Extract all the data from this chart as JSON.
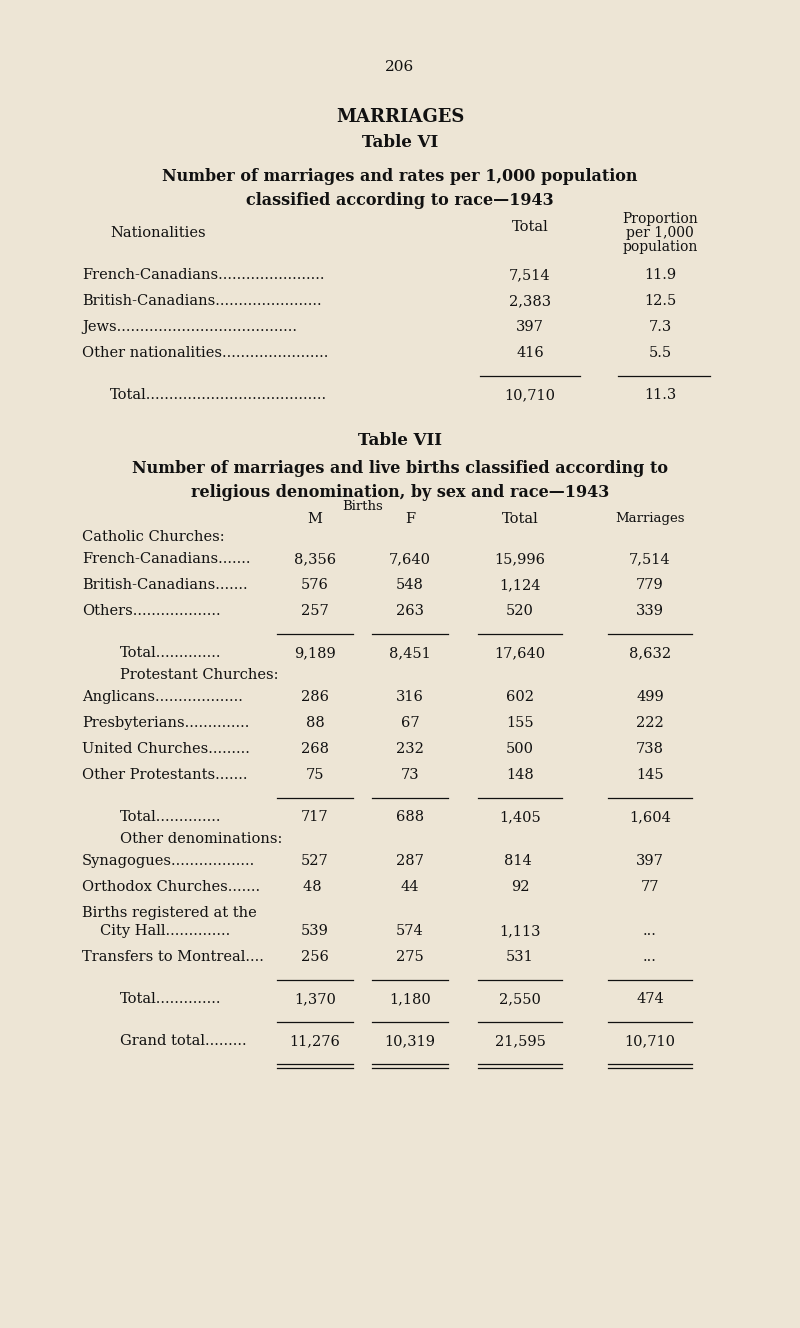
{
  "page_number": "206",
  "bg_color": "#ede5d5",
  "text_color": "#1a1a1a",
  "title1": "MARRIAGES",
  "title2": "Table VI",
  "subtitle1": "Number of marriages and rates per 1,000 population",
  "subtitle2": "classified according to race—1943",
  "title3": "Table VII",
  "subtitle3": "Number of marriages and live births classified according to",
  "subtitle4": "religious denomination, by sex and race—1943"
}
